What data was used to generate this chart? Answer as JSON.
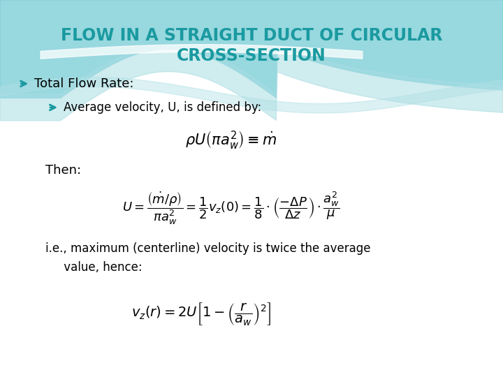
{
  "title_line1": "FLOW IN A STRAIGHT DUCT OF CIRCULAR",
  "title_line2": "CROSS-SECTION",
  "title_color": "#1a9aa0",
  "bullet1": "Total Flow Rate:",
  "bullet2": "Average velocity, U, is defined by:",
  "then_text": "Then:",
  "ie_text": "i.e., maximum (centerline) velocity is twice the average",
  "value_text": "     value, hence:",
  "bullet_color": "#1a9aa0",
  "text_color": "#000000",
  "bg_color": "#ffffff",
  "wave_color1": "#7ecfd8",
  "wave_color2": "#a8dde3",
  "wave_color3": "#b0e0e6",
  "title_fontsize": 17,
  "bullet1_fontsize": 13,
  "bullet2_fontsize": 12,
  "eq_fontsize": 15,
  "eq2_fontsize": 13,
  "eq3_fontsize": 14,
  "body_fontsize": 12,
  "then_fontsize": 13
}
